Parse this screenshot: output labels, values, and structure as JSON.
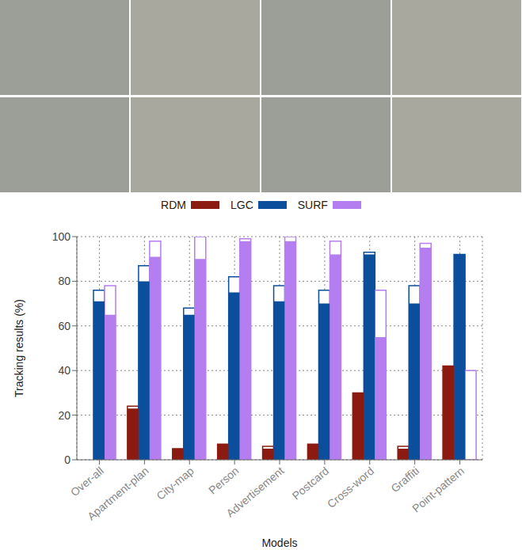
{
  "chart_data": {
    "type": "bar",
    "x_label": "Models",
    "y_label": "Tracking results (%)",
    "categories": [
      "Over-all",
      "Apartment-plan",
      "City-map",
      "Person",
      "Advertisement",
      "Postcard",
      "Cross-word",
      "Graffiti",
      "Point-pattern"
    ],
    "series": [
      {
        "name": "RDM",
        "color": "#8b1a10",
        "values": [
          null,
          23,
          5,
          7,
          5,
          7,
          30,
          5,
          42
        ],
        "upper": [
          null,
          24,
          5,
          7,
          6,
          7,
          30,
          6,
          42
        ]
      },
      {
        "name": "LGC",
        "color": "#0b4f9c",
        "values": [
          71,
          80,
          65,
          75,
          71,
          70,
          92,
          70,
          92
        ],
        "upper": [
          76,
          87,
          68,
          82,
          78,
          76,
          93,
          78,
          92
        ]
      },
      {
        "name": "SURF",
        "color": "#b57ef0",
        "values": [
          65,
          91,
          90,
          98,
          98,
          92,
          55,
          95,
          0
        ],
        "upper": [
          78,
          98,
          100,
          99,
          100,
          98,
          76,
          97,
          40
        ]
      }
    ],
    "ylim": [
      0,
      100
    ],
    "yticks": [
      0,
      20,
      40,
      60,
      80,
      100
    ],
    "grid": true,
    "legend": "top"
  }
}
